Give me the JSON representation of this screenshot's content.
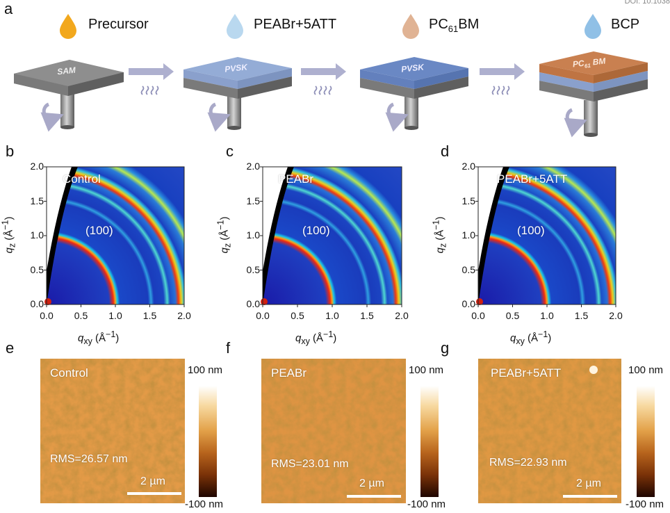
{
  "doi": "DOI: 10.1038",
  "panels": {
    "a": "a",
    "b": "b",
    "c": "c",
    "d": "d",
    "e": "e",
    "f": "f",
    "g": "g"
  },
  "steps": [
    {
      "name": "Precursor",
      "drop_color": "#f2a81d",
      "layer_text": "SAM"
    },
    {
      "name": "PEABr+5ATT",
      "drop_color": "#b9d8ef",
      "layer_text": "PVSK"
    },
    {
      "name": "PC",
      "sub": "61",
      "name_suffix": "BM",
      "drop_color": "#e0b394",
      "layer_text": "PVSK"
    },
    {
      "name": "BCP",
      "drop_color": "#90c0e6",
      "layer_text": "PC",
      "layer_sub": "61",
      "layer_suffix": " BM"
    }
  ],
  "giwaxs": [
    {
      "label": "Control",
      "peak": "(100)"
    },
    {
      "label": "PEABr",
      "peak": "(100)"
    },
    {
      "label": "PEABr+5ATT",
      "peak": "(100)"
    }
  ],
  "axes": {
    "x_label_main": "q",
    "x_label_sub": "xy",
    "x_label_unit": " (Å",
    "x_label_sup": "−1",
    "x_label_close": ")",
    "y_label_main": "q",
    "y_label_sub": "z",
    "y_label_unit": " (Å",
    "y_label_sup": "−1",
    "y_label_close": ")",
    "ticks": [
      "0.0",
      "0.5",
      "1.0",
      "1.5",
      "2.0"
    ]
  },
  "afm": [
    {
      "label": "Control",
      "rms": "RMS=26.57 nm",
      "scale": "2 µm"
    },
    {
      "label": "PEABr",
      "rms": "RMS=23.01 nm",
      "scale": "2 µm"
    },
    {
      "label": "PEABr+5ATT",
      "rms": "RMS=22.93 nm",
      "scale": "2 µm"
    }
  ],
  "colorbar": {
    "top": "100 nm",
    "bottom": "-100 nm"
  }
}
